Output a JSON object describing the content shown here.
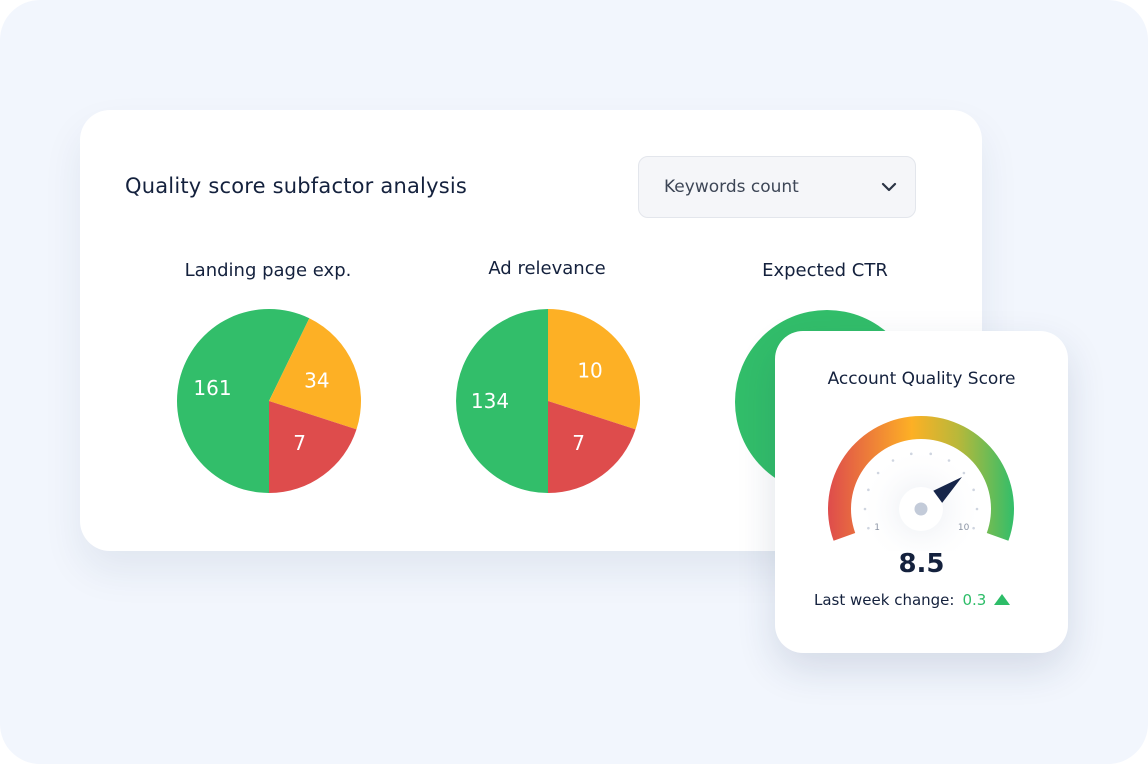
{
  "card": {
    "title": "Quality score subfactor analysis",
    "dropdown": {
      "selected": "Keywords count",
      "icon": "chevron-down-icon"
    }
  },
  "colors": {
    "good": "#32be6a",
    "average": "#fdb025",
    "poor": "#de4c4c",
    "text": "#14213d"
  },
  "chart_data": [
    {
      "type": "pie",
      "title": "Landing page exp.",
      "slices": [
        {
          "label": "161",
          "value": 161,
          "color": "#32be6a"
        },
        {
          "label": "34",
          "value": 34,
          "color": "#fdb025"
        },
        {
          "label": "7",
          "value": 7,
          "color": "#de4c4c"
        }
      ]
    },
    {
      "type": "pie",
      "title": "Ad relevance",
      "slices": [
        {
          "label": "134",
          "value": 134,
          "color": "#32be6a"
        },
        {
          "label": "10",
          "value": 10,
          "color": "#fdb025"
        },
        {
          "label": "7",
          "value": 7,
          "color": "#de4c4c"
        }
      ]
    },
    {
      "type": "pie",
      "title": "Expected CTR",
      "slices": [
        {
          "color": "#32be6a"
        }
      ]
    }
  ],
  "gauge": {
    "title": "Account Quality Score",
    "min_label": "1",
    "max_label": "10",
    "min": 1,
    "max": 10,
    "value": 8.5,
    "value_label": "8.5",
    "change_label": "Last week change:",
    "change_value": "0.3",
    "change_direction": "up",
    "change_icon": "triangle-up-icon",
    "change_color": "#2dbd68"
  }
}
